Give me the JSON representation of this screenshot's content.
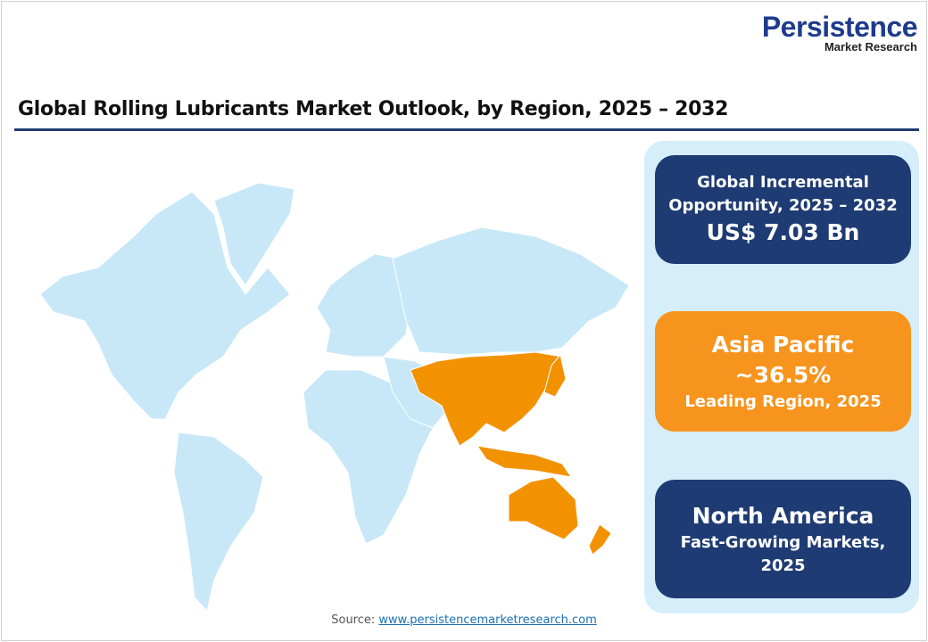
{
  "logo": {
    "line1": "Persistence",
    "line2": "Market Research"
  },
  "title": "Global Rolling Lubricants Market Outlook, by Region, 2025 – 2032",
  "map": {
    "highlight_region": "Asia Pacific",
    "highlight_color": "#f39200",
    "base_color": "#c8e8f8"
  },
  "cards": [
    {
      "line1": "Global Incremental",
      "line2": "Opportunity, 2025 – 2032",
      "value": "US$ 7.03 Bn",
      "color": "#1f3b73"
    },
    {
      "region": "Asia Pacific",
      "value": "~36.5%",
      "caption": "Leading Region, 2025",
      "color": "#f7941d"
    },
    {
      "region": "North America",
      "caption1": "Fast-Growing Markets,",
      "caption2": "2025",
      "color": "#1f3b73"
    }
  ],
  "source": {
    "label": "Source:",
    "link": "www.persistencemarketresearch.com"
  }
}
